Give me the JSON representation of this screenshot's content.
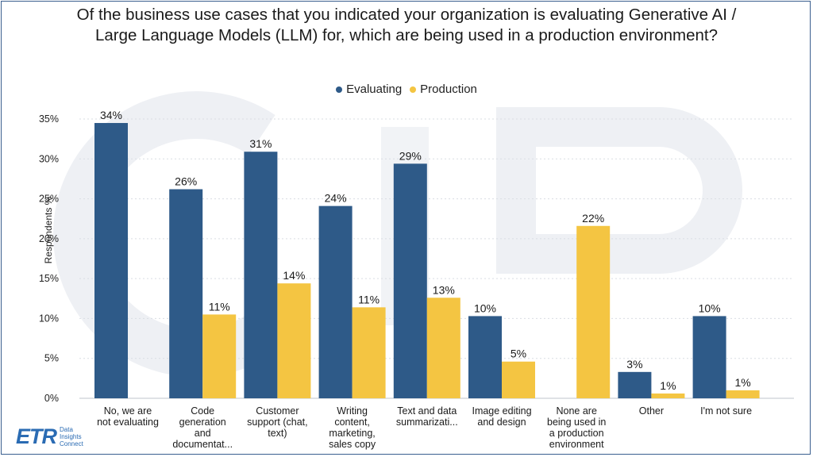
{
  "chart_data": {
    "type": "bar",
    "title_lines": [
      "Of the business use cases that you indicated your organization is evaluating Generative AI /",
      "Large Language Models (LLM) for, which are being used in a production environment?"
    ],
    "ylabel": "Respondents %",
    "ylim": [
      0,
      35
    ],
    "yticks": [
      0,
      5,
      10,
      15,
      20,
      25,
      30,
      35
    ],
    "ytick_labels": [
      "0%",
      "5%",
      "10%",
      "15%",
      "20%",
      "25%",
      "30%",
      "35%"
    ],
    "grid": true,
    "legend_position": "top-center",
    "categories": [
      [
        "No, we are",
        "not evaluating"
      ],
      [
        "Code",
        "generation",
        "and",
        "documentat..."
      ],
      [
        "Customer",
        "support (chat,",
        "text)"
      ],
      [
        "Writing",
        "content,",
        "marketing,",
        "sales copy"
      ],
      [
        "Text and data",
        "summarizati..."
      ],
      [
        "Image editing",
        "and design"
      ],
      [
        "None are",
        "being used in",
        "a production",
        "environment"
      ],
      [
        "Other"
      ],
      [
        "I'm not sure"
      ]
    ],
    "series": [
      {
        "name": "Evaluating",
        "color": "#2e5a88",
        "values": [
          34.5,
          26.2,
          30.9,
          24.1,
          29.4,
          10.3,
          null,
          3.3,
          10.3
        ],
        "labels": [
          "34%",
          "26%",
          "31%",
          "24%",
          "29%",
          "10%",
          "",
          "3%",
          "10%"
        ]
      },
      {
        "name": "Production",
        "color": "#f4c542",
        "values": [
          null,
          10.5,
          14.4,
          11.4,
          12.6,
          4.6,
          21.6,
          0.6,
          1.0
        ],
        "labels": [
          "",
          "11%",
          "14%",
          "11%",
          "13%",
          "5%",
          "22%",
          "1%",
          "1%"
        ]
      }
    ]
  },
  "logo": {
    "mark": "ETR",
    "sub_lines": [
      "Data",
      "Insights",
      "Connect"
    ]
  }
}
